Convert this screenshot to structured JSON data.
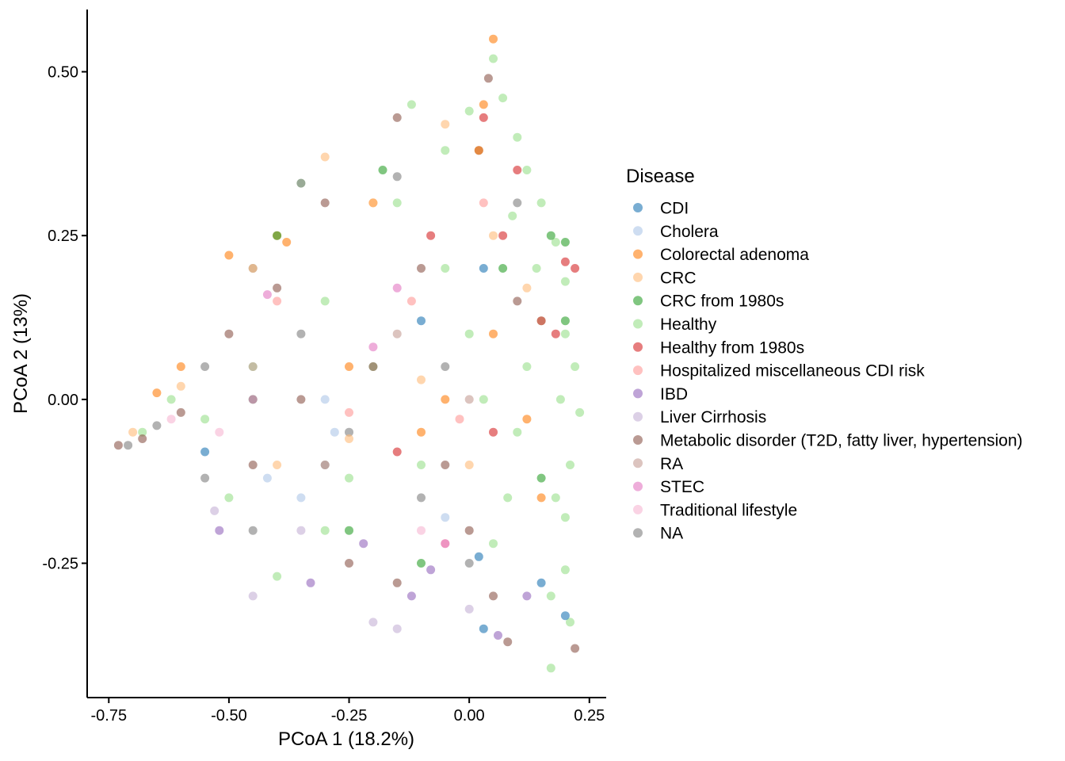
{
  "chart_data": {
    "type": "scatter",
    "title": "",
    "xlabel": "PCoA 1 (18.2%)",
    "ylabel": "PCoA 2 (13%)",
    "xlim": [
      -0.795,
      0.285
    ],
    "ylim": [
      -0.455,
      0.595
    ],
    "x_ticks": [
      -0.75,
      -0.5,
      -0.25,
      0.0,
      0.25
    ],
    "x_tick_labels": [
      "-0.75",
      "-0.50",
      "-0.25",
      "0.00",
      "0.25"
    ],
    "y_ticks": [
      0.5,
      0.25,
      0.0,
      -0.25
    ],
    "y_tick_labels": [
      "0.50",
      "0.25",
      "0.00",
      "-0.25"
    ],
    "grid": false,
    "point_opacity": 0.6,
    "legend": {
      "title": "Disease",
      "position": "right",
      "entries": [
        {
          "label": "CDI",
          "color": "#1f77b4"
        },
        {
          "label": "Cholera",
          "color": "#aec7e8"
        },
        {
          "label": "Colorectal adenoma",
          "color": "#ff7f0e"
        },
        {
          "label": "CRC",
          "color": "#ffbb78"
        },
        {
          "label": "CRC from 1980s",
          "color": "#2ca02c"
        },
        {
          "label": "Healthy",
          "color": "#98df8a"
        },
        {
          "label": "Healthy from 1980s",
          "color": "#d62728"
        },
        {
          "label": "Hospitalized miscellaneous CDI risk",
          "color": "#ff9896"
        },
        {
          "label": "IBD",
          "color": "#9467bd"
        },
        {
          "label": "Liver Cirrhosis",
          "color": "#c5b0d5"
        },
        {
          "label": "Metabolic disorder (T2D, fatty liver, hypertension)",
          "color": "#8c564b"
        },
        {
          "label": "RA",
          "color": "#c49c94"
        },
        {
          "label": "STEC",
          "color": "#e377c2"
        },
        {
          "label": "Traditional lifestyle",
          "color": "#f7b6d2"
        },
        {
          "label": "NA",
          "color": "#7f7f7f"
        }
      ]
    },
    "series": [
      {
        "name": "Healthy",
        "points": [
          [
            0.05,
            0.52
          ],
          [
            0.07,
            0.46
          ],
          [
            0.1,
            0.4
          ],
          [
            0.12,
            0.35
          ],
          [
            0.15,
            0.3
          ],
          [
            0.18,
            0.24
          ],
          [
            0.2,
            0.18
          ],
          [
            0.2,
            0.1
          ],
          [
            0.22,
            0.05
          ],
          [
            0.23,
            -0.02
          ],
          [
            0.21,
            -0.1
          ],
          [
            0.2,
            -0.18
          ],
          [
            0.2,
            -0.26
          ],
          [
            0.21,
            -0.34
          ],
          [
            0.17,
            -0.41
          ],
          [
            0.15,
            0.12
          ],
          [
            0.12,
            0.05
          ],
          [
            0.1,
            -0.05
          ],
          [
            0.08,
            -0.15
          ],
          [
            0.05,
            -0.22
          ],
          [
            0.03,
            0.0
          ],
          [
            0.0,
            0.1
          ],
          [
            -0.05,
            0.2
          ],
          [
            -0.1,
            -0.1
          ],
          [
            -0.2,
            0.05
          ],
          [
            -0.3,
            0.15
          ],
          [
            -0.35,
            0.33
          ],
          [
            -0.45,
            0.05
          ],
          [
            -0.55,
            -0.03
          ],
          [
            -0.62,
            0.0
          ],
          [
            -0.4,
            -0.27
          ],
          [
            -0.25,
            -0.12
          ],
          [
            -0.15,
            0.3
          ],
          [
            -0.05,
            0.38
          ],
          [
            0.0,
            0.44
          ],
          [
            -0.12,
            0.45
          ],
          [
            -0.3,
            -0.2
          ],
          [
            -0.5,
            -0.15
          ],
          [
            -0.68,
            -0.05
          ],
          [
            0.17,
            -0.3
          ],
          [
            0.19,
            0.0
          ],
          [
            0.18,
            -0.15
          ],
          [
            0.14,
            0.2
          ],
          [
            0.09,
            0.28
          ]
        ]
      },
      {
        "name": "Metabolic disorder (T2D, fatty liver, hypertension)",
        "points": [
          [
            -0.73,
            -0.07
          ],
          [
            -0.68,
            -0.06
          ],
          [
            -0.6,
            -0.02
          ],
          [
            -0.5,
            0.1
          ],
          [
            -0.4,
            0.17
          ],
          [
            -0.3,
            0.3
          ],
          [
            -0.2,
            0.05
          ],
          [
            -0.1,
            0.2
          ],
          [
            -0.05,
            -0.1
          ],
          [
            0.0,
            -0.2
          ],
          [
            -0.15,
            -0.28
          ],
          [
            -0.25,
            -0.25
          ],
          [
            0.02,
            0.38
          ],
          [
            -0.15,
            0.43
          ],
          [
            0.1,
            0.15
          ],
          [
            0.05,
            -0.3
          ],
          [
            0.08,
            -0.37
          ],
          [
            0.22,
            -0.38
          ],
          [
            -0.45,
            -0.1
          ],
          [
            -0.35,
            0.0
          ],
          [
            0.04,
            0.49
          ]
        ]
      },
      {
        "name": "NA",
        "points": [
          [
            -0.71,
            -0.07
          ],
          [
            -0.65,
            -0.04
          ],
          [
            -0.55,
            0.05
          ],
          [
            -0.45,
            0.2
          ],
          [
            -0.35,
            0.1
          ],
          [
            -0.25,
            -0.05
          ],
          [
            -0.1,
            -0.15
          ],
          [
            -0.05,
            0.05
          ],
          [
            -0.3,
            -0.1
          ],
          [
            -0.35,
            0.33
          ],
          [
            -0.15,
            0.34
          ],
          [
            0.0,
            -0.25
          ],
          [
            0.1,
            0.3
          ],
          [
            -0.45,
            -0.2
          ],
          [
            -0.55,
            -0.12
          ]
        ]
      },
      {
        "name": "Colorectal adenoma",
        "points": [
          [
            0.05,
            0.55
          ],
          [
            0.03,
            0.45
          ],
          [
            0.02,
            0.38
          ],
          [
            -0.38,
            0.24
          ],
          [
            -0.5,
            0.22
          ],
          [
            -0.6,
            0.05
          ],
          [
            -0.25,
            0.05
          ],
          [
            -0.05,
            0.0
          ],
          [
            0.12,
            -0.03
          ],
          [
            0.15,
            -0.15
          ],
          [
            0.05,
            0.1
          ],
          [
            -0.1,
            -0.05
          ],
          [
            -0.65,
            0.01
          ],
          [
            -0.2,
            0.3
          ],
          [
            -0.4,
            0.25
          ]
        ]
      },
      {
        "name": "CRC",
        "points": [
          [
            -0.3,
            0.37
          ],
          [
            -0.45,
            0.2
          ],
          [
            -0.25,
            -0.06
          ],
          [
            -0.1,
            0.03
          ],
          [
            0.0,
            -0.1
          ],
          [
            -0.6,
            0.02
          ],
          [
            -0.7,
            -0.05
          ],
          [
            0.12,
            0.17
          ],
          [
            0.05,
            0.25
          ],
          [
            -0.2,
            0.3
          ],
          [
            -0.05,
            0.42
          ],
          [
            -0.4,
            -0.1
          ]
        ]
      },
      {
        "name": "CRC from 1980s",
        "points": [
          [
            0.17,
            0.25
          ],
          [
            0.2,
            0.12
          ],
          [
            0.07,
            0.2
          ],
          [
            -0.4,
            0.25
          ],
          [
            -0.18,
            0.35
          ],
          [
            -0.1,
            -0.25
          ],
          [
            -0.25,
            -0.2
          ],
          [
            -0.45,
            0.0
          ],
          [
            0.15,
            -0.12
          ],
          [
            0.2,
            0.24
          ]
        ]
      },
      {
        "name": "Healthy from 1980s",
        "points": [
          [
            0.03,
            0.43
          ],
          [
            -0.08,
            0.25
          ],
          [
            0.07,
            0.25
          ],
          [
            0.2,
            0.21
          ],
          [
            0.22,
            0.2
          ],
          [
            0.15,
            0.12
          ],
          [
            0.18,
            0.1
          ],
          [
            0.1,
            0.35
          ],
          [
            0.05,
            -0.05
          ],
          [
            -0.15,
            -0.08
          ]
        ]
      },
      {
        "name": "Hospitalized miscellaneous CDI risk",
        "points": [
          [
            -0.05,
            -0.22
          ],
          [
            -0.12,
            0.15
          ],
          [
            -0.25,
            -0.02
          ],
          [
            0.03,
            0.3
          ],
          [
            -0.4,
            0.15
          ],
          [
            -0.02,
            -0.03
          ]
        ]
      },
      {
        "name": "CDI",
        "points": [
          [
            -0.1,
            0.12
          ],
          [
            0.02,
            -0.24
          ],
          [
            0.03,
            -0.35
          ],
          [
            0.15,
            -0.28
          ],
          [
            0.2,
            -0.33
          ],
          [
            0.03,
            0.2
          ],
          [
            -0.55,
            -0.08
          ]
        ]
      },
      {
        "name": "Cholera",
        "points": [
          [
            -0.28,
            -0.05
          ],
          [
            -0.35,
            -0.15
          ],
          [
            -0.05,
            -0.18
          ],
          [
            -0.42,
            -0.12
          ],
          [
            -0.3,
            0.0
          ]
        ]
      },
      {
        "name": "IBD",
        "points": [
          [
            -0.52,
            -0.2
          ],
          [
            -0.33,
            -0.28
          ],
          [
            -0.12,
            -0.3
          ],
          [
            -0.08,
            -0.26
          ],
          [
            0.06,
            -0.36
          ],
          [
            0.12,
            -0.3
          ],
          [
            -0.22,
            -0.22
          ]
        ]
      },
      {
        "name": "Liver Cirrhosis",
        "points": [
          [
            -0.53,
            -0.17
          ],
          [
            -0.15,
            -0.35
          ],
          [
            -0.35,
            -0.2
          ],
          [
            -0.2,
            -0.34
          ],
          [
            -0.45,
            -0.3
          ],
          [
            0.0,
            -0.32
          ]
        ]
      },
      {
        "name": "RA",
        "points": [
          [
            -0.45,
            0.05
          ],
          [
            -0.3,
            -0.1
          ],
          [
            -0.15,
            0.1
          ],
          [
            0.0,
            0.0
          ]
        ]
      },
      {
        "name": "STEC",
        "points": [
          [
            -0.42,
            0.16
          ],
          [
            -0.2,
            0.08
          ],
          [
            -0.15,
            0.17
          ],
          [
            -0.45,
            0.0
          ],
          [
            -0.05,
            -0.22
          ]
        ]
      },
      {
        "name": "Traditional lifestyle",
        "points": [
          [
            -0.52,
            -0.05
          ],
          [
            -0.1,
            -0.2
          ],
          [
            -0.62,
            -0.03
          ]
        ]
      }
    ]
  }
}
